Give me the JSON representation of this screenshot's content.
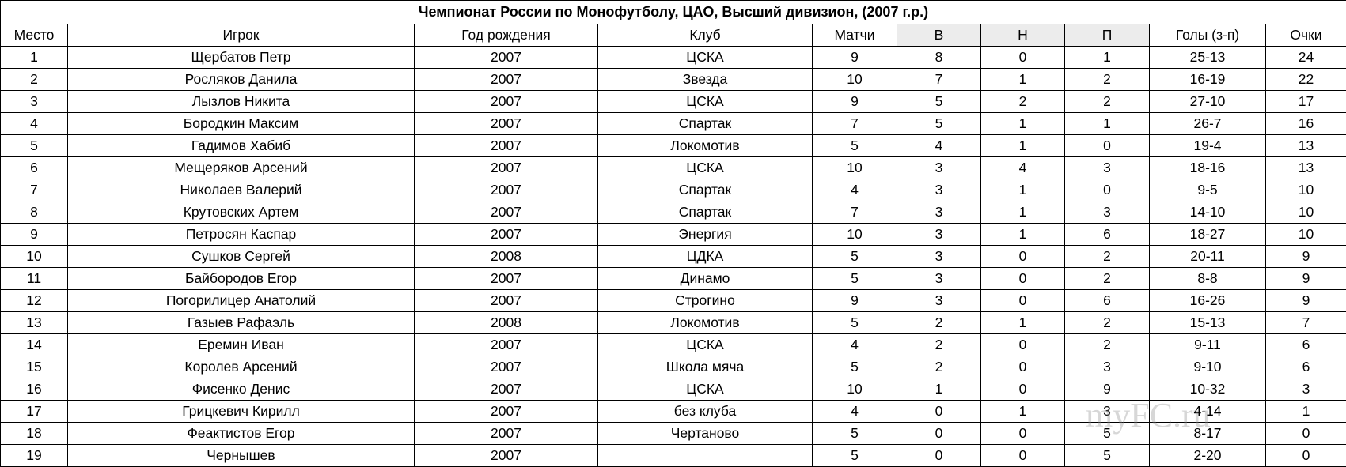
{
  "table": {
    "title": "Чемпионат России по Монофутболу, ЦАО, Высший дивизион, (2007 г.р.)",
    "header": [
      "Место",
      "Игрок",
      "Год рождения",
      "Клуб",
      "Матчи",
      "В",
      "Н",
      "П",
      "Голы (з-п)",
      "Очки"
    ],
    "rows": [
      [
        1,
        "Щербатов Петр",
        2007,
        "ЦСКА",
        9,
        8,
        0,
        1,
        "25-13",
        24
      ],
      [
        2,
        "Росляков Данила",
        2007,
        "Звезда",
        10,
        7,
        1,
        2,
        "16-19",
        22
      ],
      [
        3,
        "Лызлов Никита",
        2007,
        "ЦСКА",
        9,
        5,
        2,
        2,
        "27-10",
        17
      ],
      [
        4,
        "Бородкин Максим",
        2007,
        "Спартак",
        7,
        5,
        1,
        1,
        "26-7",
        16
      ],
      [
        5,
        "Гадимов Хабиб",
        2007,
        "Локомотив",
        5,
        4,
        1,
        0,
        "19-4",
        13
      ],
      [
        6,
        "Мещеряков Арсений",
        2007,
        "ЦСКА",
        10,
        3,
        4,
        3,
        "18-16",
        13
      ],
      [
        7,
        "Николаев Валерий",
        2007,
        "Спартак",
        4,
        3,
        1,
        0,
        "9-5",
        10
      ],
      [
        8,
        "Крутовских Артем",
        2007,
        "Спартак",
        7,
        3,
        1,
        3,
        "14-10",
        10
      ],
      [
        9,
        "Петросян Каспар",
        2007,
        "Энергия",
        10,
        3,
        1,
        6,
        "18-27",
        10
      ],
      [
        10,
        "Сушков Сергей",
        2008,
        "ЦДКА",
        5,
        3,
        0,
        2,
        "20-11",
        9
      ],
      [
        11,
        "Байбородов Егор",
        2007,
        "Динамо",
        5,
        3,
        0,
        2,
        "8-8",
        9
      ],
      [
        12,
        "Погорилицер Анатолий",
        2007,
        "Строгино",
        9,
        3,
        0,
        6,
        "16-26",
        9
      ],
      [
        13,
        "Газыев Рафаэль",
        2008,
        "Локомотив",
        5,
        2,
        1,
        2,
        "15-13",
        7
      ],
      [
        14,
        "Еремин Иван",
        2007,
        "ЦСКА",
        4,
        2,
        0,
        2,
        "9-11",
        6
      ],
      [
        15,
        "Королев Арсений",
        2007,
        "Школа мяча",
        5,
        2,
        0,
        3,
        "9-10",
        6
      ],
      [
        16,
        "Фисенко Денис",
        2007,
        "ЦСКА",
        10,
        1,
        0,
        9,
        "10-32",
        3
      ],
      [
        17,
        "Грицкевич Кирилл",
        2007,
        "без клуба",
        4,
        0,
        1,
        3,
        "4-14",
        1
      ],
      [
        18,
        "Феактистов Егор",
        2007,
        "Чертаново",
        5,
        0,
        0,
        5,
        "8-17",
        0
      ],
      [
        19,
        "Чернышев",
        2007,
        null,
        5,
        0,
        0,
        5,
        "2-20",
        0
      ]
    ]
  },
  "watermark": "myFC.ru"
}
